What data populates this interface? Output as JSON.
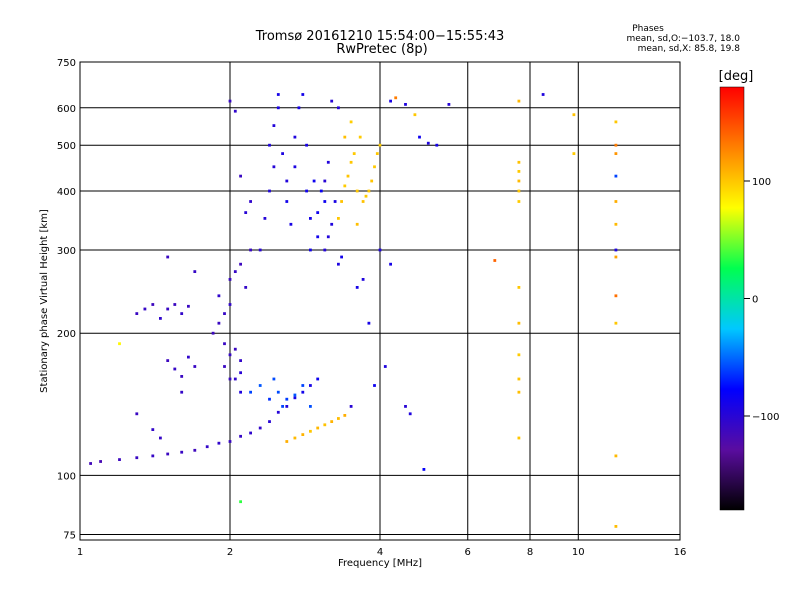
{
  "chart_data": {
    "type": "scatter",
    "title": "Tromsø 20161210 15:54:00−15:55:43",
    "subtitle": "RwPretec (8p)",
    "xlabel": "Frequency [MHz]",
    "ylabel": "Stationary phase Virtual Height [km]",
    "x_scale": "log",
    "y_scale": "log",
    "xlim": [
      1,
      16
    ],
    "ylim": [
      73,
      750
    ],
    "x_ticks": [
      1,
      2,
      4,
      6,
      8,
      10,
      16
    ],
    "x_tick_labels": [
      "1",
      "2",
      "4",
      "6",
      "8",
      "10",
      "16"
    ],
    "y_ticks": [
      75,
      100,
      200,
      300,
      400,
      500,
      600,
      750
    ],
    "y_tick_labels": [
      "75",
      "100",
      "200",
      "300",
      "400",
      "500",
      "600",
      "750"
    ],
    "grid": true,
    "legend": {
      "title": "Phases",
      "lines": [
        "mean, sd,O:−103.7, 18.0",
        "mean, sd,X:  85.8, 19.8"
      ]
    },
    "colorbar": {
      "label": "[deg]",
      "min": -180,
      "max": 180,
      "ticks": [
        100,
        0,
        -100
      ],
      "tick_labels": [
        "100",
        "0",
        "−100"
      ],
      "colors": [
        "#000000",
        "#5a0ca0",
        "#0000ff",
        "#00c8ff",
        "#00ff50",
        "#ffff00",
        "#ff8000",
        "#ff0000"
      ]
    },
    "series": [
      {
        "points": [
          [
            1.05,
            106,
            -115
          ],
          [
            1.1,
            107,
            -118
          ],
          [
            1.2,
            108,
            -112
          ],
          [
            1.3,
            109,
            -110
          ],
          [
            1.4,
            110,
            -108
          ],
          [
            1.5,
            111,
            -111
          ],
          [
            1.6,
            112,
            -109
          ],
          [
            1.7,
            113,
            -113
          ],
          [
            1.8,
            115,
            -107
          ],
          [
            1.9,
            117,
            -105
          ],
          [
            2.0,
            118,
            -110
          ],
          [
            2.1,
            121,
            -108
          ],
          [
            2.2,
            123,
            -104
          ],
          [
            2.3,
            126,
            -106
          ],
          [
            2.4,
            130,
            -100
          ],
          [
            2.5,
            136,
            -98
          ],
          [
            2.6,
            140,
            -95
          ],
          [
            2.7,
            146,
            -92
          ],
          [
            2.8,
            150,
            -88
          ],
          [
            2.9,
            155,
            -90
          ],
          [
            3.0,
            160,
            -85
          ]
        ]
      },
      {
        "points": [
          [
            1.3,
            220,
            -110
          ],
          [
            1.35,
            225,
            -108
          ],
          [
            1.4,
            230,
            -112
          ],
          [
            1.45,
            215,
            -105
          ],
          [
            1.5,
            225,
            -109
          ],
          [
            1.55,
            230,
            -111
          ],
          [
            1.6,
            220,
            -106
          ],
          [
            1.65,
            228,
            -110
          ],
          [
            1.5,
            175,
            -112
          ],
          [
            1.55,
            168,
            -108
          ],
          [
            1.6,
            162,
            -110
          ],
          [
            1.65,
            178,
            -105
          ],
          [
            1.7,
            170,
            -109
          ],
          [
            1.6,
            150,
            -107
          ],
          [
            1.5,
            290,
            -110
          ],
          [
            1.7,
            270,
            -108
          ],
          [
            1.3,
            135,
            -110
          ],
          [
            1.4,
            125,
            -106
          ],
          [
            1.45,
            120,
            -108
          ]
        ]
      },
      {
        "points": [
          [
            1.85,
            200,
            -112
          ],
          [
            1.9,
            210,
            -110
          ],
          [
            1.95,
            220,
            -108
          ],
          [
            2.0,
            230,
            -106
          ],
          [
            1.9,
            240,
            -105
          ],
          [
            2.0,
            260,
            -110
          ],
          [
            2.05,
            270,
            -108
          ],
          [
            2.1,
            280,
            -112
          ],
          [
            2.15,
            250,
            -107
          ],
          [
            2.2,
            300,
            -110
          ],
          [
            1.95,
            190,
            -109
          ],
          [
            2.05,
            185,
            -111
          ],
          [
            2.0,
            180,
            -108
          ],
          [
            2.1,
            175,
            -106
          ],
          [
            1.95,
            170,
            -110
          ],
          [
            2.05,
            160,
            -105
          ],
          [
            2.1,
            150,
            -95
          ],
          [
            2.0,
            160,
            -110
          ],
          [
            2.1,
            165,
            -100
          ],
          [
            2.1,
            430,
            -110
          ],
          [
            2.2,
            380,
            -105
          ],
          [
            2.15,
            360,
            -100
          ],
          [
            2.0,
            620,
            -108
          ],
          [
            2.05,
            590,
            -105
          ]
        ]
      },
      {
        "points": [
          [
            2.3,
            300,
            -100
          ],
          [
            2.35,
            350,
            -98
          ],
          [
            2.4,
            400,
            -96
          ],
          [
            2.45,
            450,
            -99
          ],
          [
            2.4,
            500,
            -95
          ],
          [
            2.45,
            550,
            -97
          ],
          [
            2.5,
            600,
            -92
          ],
          [
            2.5,
            640,
            -90
          ],
          [
            2.55,
            480,
            -94
          ],
          [
            2.6,
            420,
            -96
          ],
          [
            2.6,
            380,
            -88
          ],
          [
            2.65,
            340,
            -91
          ],
          [
            2.7,
            450,
            -93
          ],
          [
            2.7,
            520,
            -95
          ],
          [
            2.75,
            600,
            -90
          ],
          [
            2.8,
            640,
            -89
          ],
          [
            2.85,
            500,
            -92
          ],
          [
            2.85,
            400,
            -87
          ],
          [
            2.9,
            350,
            -90
          ],
          [
            2.9,
            300,
            -88
          ],
          [
            2.95,
            420,
            -85
          ],
          [
            3.0,
            360,
            -86
          ],
          [
            3.0,
            320,
            -88
          ],
          [
            3.05,
            400,
            -83
          ],
          [
            3.1,
            380,
            -85
          ]
        ]
      },
      {
        "points": [
          [
            3.1,
            300,
            -98
          ],
          [
            3.15,
            320,
            -96
          ],
          [
            3.2,
            340,
            -95
          ],
          [
            3.25,
            380,
            -92
          ],
          [
            3.3,
            280,
            -94
          ],
          [
            3.35,
            290,
            -88
          ],
          [
            3.2,
            620,
            -100
          ],
          [
            3.3,
            600,
            -98
          ],
          [
            3.1,
            420,
            -100
          ],
          [
            3.15,
            460,
            -96
          ]
        ]
      },
      {
        "points": [
          [
            3.3,
            350,
            100
          ],
          [
            3.35,
            380,
            102
          ],
          [
            3.4,
            410,
            98
          ],
          [
            3.45,
            430,
            101
          ],
          [
            3.5,
            460,
            100
          ],
          [
            3.55,
            480,
            99
          ],
          [
            3.4,
            520,
            103
          ],
          [
            3.5,
            560,
            97
          ],
          [
            3.6,
            400,
            100
          ],
          [
            3.7,
            380,
            102
          ],
          [
            3.75,
            390,
            98
          ],
          [
            3.8,
            400,
            100
          ],
          [
            3.85,
            420,
            101
          ],
          [
            3.9,
            450,
            99
          ],
          [
            3.95,
            480,
            100
          ],
          [
            4.0,
            500,
            97
          ],
          [
            3.6,
            340,
            103
          ],
          [
            3.65,
            520,
            98
          ]
        ]
      },
      {
        "points": [
          [
            2.2,
            150,
            -60
          ],
          [
            2.3,
            155,
            -55
          ],
          [
            2.4,
            145,
            -65
          ],
          [
            2.5,
            150,
            -58
          ],
          [
            2.6,
            145,
            -62
          ],
          [
            2.7,
            148,
            -55
          ],
          [
            2.8,
            155,
            -60
          ],
          [
            2.9,
            140,
            -57
          ],
          [
            2.55,
            140,
            -60
          ],
          [
            2.45,
            160,
            -58
          ]
        ]
      },
      {
        "points": [
          [
            2.6,
            118,
            110
          ],
          [
            2.7,
            120,
            105
          ],
          [
            2.8,
            122,
            108
          ],
          [
            2.9,
            124,
            100
          ],
          [
            3.0,
            126,
            106
          ],
          [
            3.1,
            128,
            102
          ],
          [
            3.2,
            130,
            108
          ],
          [
            3.3,
            132,
            104
          ],
          [
            3.4,
            134,
            110
          ]
        ]
      },
      {
        "points": [
          [
            5.0,
            505,
            -95
          ],
          [
            5.2,
            500,
            -90
          ],
          [
            4.8,
            520,
            -85
          ],
          [
            5.5,
            610,
            -100
          ],
          [
            4.5,
            610,
            -95
          ],
          [
            4.2,
            620,
            -92
          ],
          [
            4.0,
            300,
            -95
          ],
          [
            4.2,
            280,
            -90
          ],
          [
            4.5,
            140,
            -100
          ],
          [
            4.6,
            135,
            -95
          ],
          [
            4.9,
            103,
            -80
          ],
          [
            3.8,
            210,
            -90
          ],
          [
            3.9,
            155,
            -85
          ],
          [
            4.1,
            170,
            -95
          ],
          [
            3.5,
            140,
            -100
          ],
          [
            3.6,
            250,
            -90
          ],
          [
            3.7,
            260,
            -95
          ]
        ]
      },
      {
        "points": [
          [
            4.3,
            630,
            130
          ],
          [
            4.7,
            580,
            100
          ],
          [
            6.8,
            285,
            140
          ],
          [
            7.6,
            400,
            100
          ],
          [
            7.6,
            420,
            105
          ],
          [
            7.6,
            380,
            98
          ],
          [
            7.6,
            460,
            102
          ],
          [
            7.6,
            440,
            99
          ],
          [
            7.6,
            250,
            100
          ],
          [
            7.6,
            210,
            104
          ],
          [
            7.6,
            180,
            98
          ],
          [
            7.6,
            160,
            101
          ],
          [
            7.6,
            150,
            103
          ],
          [
            7.6,
            120,
            100
          ],
          [
            7.6,
            620,
            106
          ],
          [
            9.8,
            580,
            102
          ],
          [
            9.8,
            480,
            98
          ],
          [
            11.9,
            560,
            100
          ],
          [
            11.9,
            500,
            130
          ],
          [
            11.9,
            480,
            120
          ],
          [
            11.9,
            380,
            110
          ],
          [
            11.9,
            340,
            105
          ],
          [
            11.9,
            290,
            115
          ],
          [
            11.9,
            240,
            135
          ],
          [
            11.9,
            210,
            100
          ],
          [
            11.9,
            110,
            105
          ],
          [
            11.9,
            78,
            104
          ],
          [
            8.5,
            640,
            -95
          ],
          [
            11.9,
            430,
            -60
          ],
          [
            11.9,
            300,
            -95
          ],
          [
            2.1,
            88,
            35
          ],
          [
            1.2,
            190,
            80
          ]
        ]
      }
    ]
  }
}
